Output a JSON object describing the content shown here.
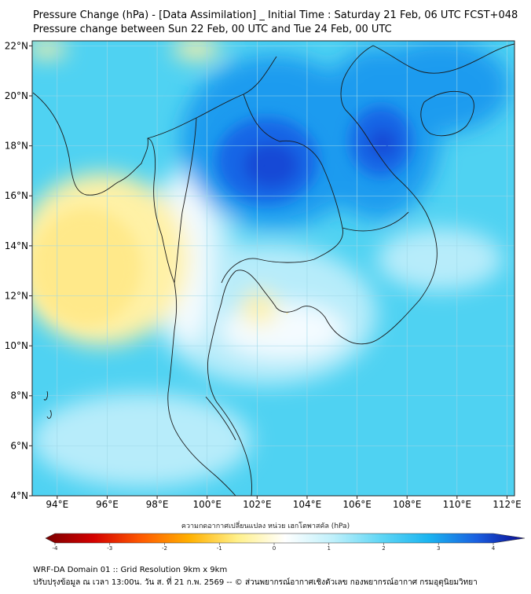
{
  "header": {
    "title_line1": "Pressure Change (hPa) - [Data Assimilation] _ Initial Time : Saturday 21 Feb, 06 UTC FCST+048",
    "title_line2": "Pressure change between Sun 22 Feb, 00 UTC and Tue 24 Feb, 00 UTC"
  },
  "map": {
    "lon_range": [
      93,
      112.3
    ],
    "lat_range": [
      4,
      22.2
    ],
    "lon_ticks": [
      {
        "value": 94,
        "label": "94°E"
      },
      {
        "value": 96,
        "label": "96°E"
      },
      {
        "value": 98,
        "label": "98°E"
      },
      {
        "value": 100,
        "label": "100°E"
      },
      {
        "value": 102,
        "label": "102°E"
      },
      {
        "value": 104,
        "label": "104°E"
      },
      {
        "value": 106,
        "label": "106°E"
      },
      {
        "value": 108,
        "label": "108°E"
      },
      {
        "value": 110,
        "label": "110°E"
      },
      {
        "value": 112,
        "label": "112°E"
      }
    ],
    "lat_ticks": [
      {
        "value": 22,
        "label": "22°N"
      },
      {
        "value": 20,
        "label": "20°N"
      },
      {
        "value": 18,
        "label": "18°N"
      },
      {
        "value": 16,
        "label": "16°N"
      },
      {
        "value": 14,
        "label": "14°N"
      },
      {
        "value": 12,
        "label": "12°N"
      },
      {
        "value": 10,
        "label": "10°N"
      },
      {
        "value": 8,
        "label": "8°N"
      },
      {
        "value": 6,
        "label": "6°N"
      },
      {
        "value": 4,
        "label": "4°N"
      }
    ],
    "colors": {
      "background": "#4fd2f2",
      "light": "#b7ecfa",
      "white": "#f4fbff",
      "yellow": "#fff1a6",
      "yellow_strong": "#ffe98a",
      "blue": "#1f9bef",
      "blue_strong": "#1466e6",
      "blue_core": "#1448d6",
      "coast": "#1a1a1a",
      "grid": "#9ed7e8"
    },
    "anomalies": [
      {
        "kind": "negative",
        "lon": 102.3,
        "lat": 17.2,
        "value": 3.6
      },
      {
        "kind": "negative",
        "lon": 107.2,
        "lat": 18.0,
        "value": 3.2
      },
      {
        "kind": "positive",
        "lon": 95.3,
        "lat": 13.3,
        "value": -1.4
      },
      {
        "kind": "positive",
        "lon": 103.2,
        "lat": 11.3,
        "value": -0.6
      }
    ]
  },
  "colorbar": {
    "label": "ความกดอากาศเปลี่ยนแปลง หน่วย เฮกโตพาสคัล (hPa)",
    "min": -4,
    "max": 4,
    "ticks": [
      "-4",
      "-3",
      "-2",
      "-1",
      "0",
      "1",
      "2",
      "3",
      "4"
    ],
    "stops": [
      {
        "value": -4,
        "color": "#7a0000"
      },
      {
        "value": -3.2,
        "color": "#d40000"
      },
      {
        "value": -2.4,
        "color": "#ff5a00"
      },
      {
        "value": -1.6,
        "color": "#ffb000"
      },
      {
        "value": -0.8,
        "color": "#fff08a"
      },
      {
        "value": 0,
        "color": "#ffffff"
      },
      {
        "value": 0.8,
        "color": "#bff0fb"
      },
      {
        "value": 1.6,
        "color": "#5fd6f5"
      },
      {
        "value": 2.4,
        "color": "#1ab4f0"
      },
      {
        "value": 3.2,
        "color": "#1a5fe0"
      },
      {
        "value": 4,
        "color": "#0a0a90"
      }
    ]
  },
  "footer": {
    "line1": "WRF-DA Domain 01 :: Grid Resolution 9km x 9km",
    "line2": "ปรับปรุงข้อมูล ณ เวลา 13:00น. วัน ส. ที่ 21 ก.พ. 2569 -- © ส่วนพยากรณ์อากาศเชิงตัวเลข กองพยากรณ์อากาศ กรมอุตุนิยมวิทยา"
  }
}
